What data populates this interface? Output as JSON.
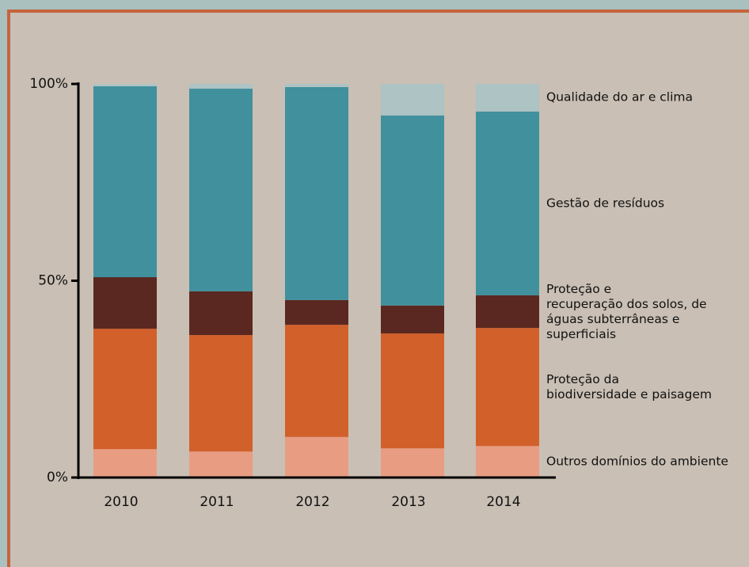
{
  "chart_data": {
    "type": "stacked-bar",
    "categories": [
      "2010",
      "2011",
      "2012",
      "2013",
      "2014"
    ],
    "series": [
      {
        "name": "Outros domínios do ambiente",
        "color": "#e89d83",
        "values": [
          7.2,
          6.6,
          10.3,
          7.4,
          8.0
        ]
      },
      {
        "name": "Proteção da\nbiodiversidade e paisagem",
        "color": "#d2602b",
        "values": [
          30.6,
          29.6,
          28.5,
          29.2,
          30.0
        ]
      },
      {
        "name": "Proteção e\nrecuperação dos solos, de\náguas subterrâneas e superficiais",
        "color": "#5a2820",
        "values": [
          13.1,
          11.1,
          6.3,
          7.1,
          8.3
        ]
      },
      {
        "name": "Gestão de resíduos",
        "color": "#40909e",
        "values": [
          48.5,
          51.5,
          54.1,
          48.3,
          46.7
        ]
      },
      {
        "name": "Qualidade do ar e clima",
        "color": "#aec3c3",
        "values": [
          0.6,
          1.2,
          0.8,
          8.0,
          7.0
        ]
      }
    ],
    "ylim": [
      0,
      100
    ],
    "yticks": [
      {
        "value": 0,
        "label": "0%"
      },
      {
        "value": 50,
        "label": "50%"
      },
      {
        "value": 100,
        "label": "100%"
      }
    ]
  }
}
